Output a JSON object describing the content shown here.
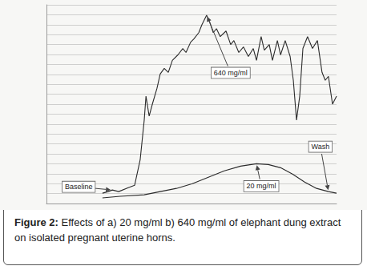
{
  "chart_data": {
    "type": "line",
    "title": "Figure 2: Effects of a) 20 mg/ml b) 640 mg/ml of elephant dung extract on isolated pregnant uterine horns.",
    "series": [
      {
        "name": "640 mg/ml",
        "color": "#2b2b2b",
        "x": [
          19.3,
          21.3,
          22.7,
          24.9,
          28.2,
          30.4,
          32.3,
          33.7,
          34.3,
          35.4,
          36.5,
          38.1,
          39.2,
          40.6,
          42.0,
          43.4,
          45.3,
          47.0,
          48.1,
          49.7,
          50.8,
          52.5,
          53.6,
          55.2,
          56.4,
          57.5,
          58.6,
          59.9,
          61.9,
          63.5,
          64.6,
          66.3,
          67.9,
          69.6,
          71.3,
          72.4,
          74.0,
          75.1,
          76.8,
          77.9,
          79.6,
          80.7,
          82.3,
          84.0,
          85.1,
          86.2,
          87.3,
          88.4,
          90.0,
          91.7,
          93.4,
          95.0,
          96.1,
          97.2,
          98.6,
          100
        ],
        "values": [
          5.2,
          6,
          6.8,
          6,
          8,
          9.2,
          22,
          42,
          54,
          44,
          50,
          58,
          65.2,
          68,
          66,
          72,
          74.8,
          78,
          76,
          81.2,
          82.8,
          86,
          90,
          94.8,
          90.8,
          86,
          88,
          84,
          86.8,
          80,
          82,
          76,
          78.8,
          74,
          78,
          72,
          84,
          77.2,
          80,
          72,
          82,
          74.8,
          82,
          74,
          62,
          42,
          54,
          78,
          84,
          78,
          82,
          66,
          62,
          64,
          50,
          54
        ]
      },
      {
        "name": "20 mg/ml",
        "color": "#2b2b2b",
        "x": [
          19.3,
          25.4,
          33.7,
          39.2,
          44.8,
          50.3,
          55.8,
          61.3,
          66.9,
          72.4,
          76.5,
          80.7,
          84.8,
          89.0,
          93.1,
          97.2,
          100
        ],
        "values": [
          2.8,
          3.6,
          4.4,
          6,
          7.6,
          10,
          13.2,
          16.4,
          18.8,
          20,
          19.6,
          18,
          14.8,
          10.8,
          7.6,
          6,
          5.2
        ]
      }
    ],
    "annotations": [
      {
        "text": "640 mg/ml",
        "x": 55.2,
        "y": 94.8
      },
      {
        "text": "20 mg/ml",
        "x": 72.4,
        "y": 20
      },
      {
        "text": "Baseline",
        "x": 22.7,
        "y": 6.8
      },
      {
        "text": "Wash",
        "x": 97.2,
        "y": 6
      }
    ],
    "xlim": [
      0,
      100
    ],
    "xticks": [
      0,
      100
    ],
    "ylim": [
      0,
      100
    ],
    "yticks": [
      0,
      5,
      10,
      15,
      20,
      25,
      30,
      35,
      40,
      45,
      50,
      55,
      60,
      65,
      70,
      75,
      80,
      85,
      90,
      95,
      100
    ],
    "grid": "y",
    "tick_labels": false
  }
}
